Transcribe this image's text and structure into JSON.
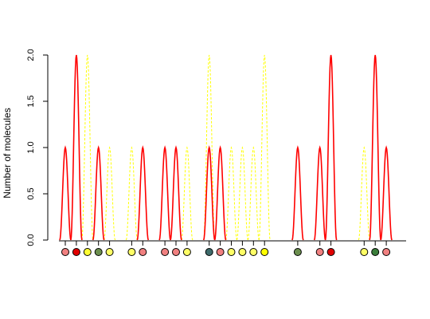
{
  "chart_data": {
    "type": "line",
    "title": "",
    "xlabel": "",
    "ylabel": "Number of molecules",
    "ylim": [
      0,
      2
    ],
    "yticks": [
      "0.0",
      "0.5",
      "1.0",
      "1.5",
      "2.0"
    ],
    "ytick_values": [
      0,
      0.5,
      1,
      1.5,
      2
    ],
    "grid": false,
    "legend": "none",
    "xlim": [
      1,
      31
    ],
    "series": [
      {
        "color": "#ff0000",
        "style": "solid",
        "peaks": [
          {
            "x": 1,
            "y": 1
          },
          {
            "x": 2,
            "y": 2
          },
          {
            "x": 4,
            "y": 1
          },
          {
            "x": 8,
            "y": 1
          },
          {
            "x": 10,
            "y": 1
          },
          {
            "x": 11,
            "y": 1
          },
          {
            "x": 14,
            "y": 1
          },
          {
            "x": 15,
            "y": 1
          },
          {
            "x": 22,
            "y": 1
          },
          {
            "x": 24,
            "y": 1
          },
          {
            "x": 25,
            "y": 2
          },
          {
            "x": 29,
            "y": 2
          },
          {
            "x": 30,
            "y": 1
          }
        ]
      },
      {
        "color": "#ffff00",
        "style": "dashed",
        "peaks": [
          {
            "x": 3,
            "y": 2
          },
          {
            "x": 4,
            "y": 1
          },
          {
            "x": 5,
            "y": 1
          },
          {
            "x": 7,
            "y": 1
          },
          {
            "x": 12,
            "y": 1
          },
          {
            "x": 14,
            "y": 2
          },
          {
            "x": 16,
            "y": 1
          },
          {
            "x": 17,
            "y": 1
          },
          {
            "x": 18,
            "y": 1
          },
          {
            "x": 19,
            "y": 2
          },
          {
            "x": 22,
            "y": 1
          },
          {
            "x": 28,
            "y": 1
          }
        ]
      }
    ],
    "markers": [
      {
        "x": 1,
        "color": "#f08080"
      },
      {
        "x": 2,
        "color": "#e00000"
      },
      {
        "x": 3,
        "color": "#ffff33"
      },
      {
        "x": 4,
        "color": "#6b8e4e"
      },
      {
        "x": 5,
        "color": "#ffff66"
      },
      {
        "x": 7,
        "color": "#ffff66"
      },
      {
        "x": 8,
        "color": "#f08080"
      },
      {
        "x": 10,
        "color": "#f08080"
      },
      {
        "x": 11,
        "color": "#f08080"
      },
      {
        "x": 12,
        "color": "#ffff66"
      },
      {
        "x": 14,
        "color": "#3e6b6b"
      },
      {
        "x": 15,
        "color": "#f08080"
      },
      {
        "x": 16,
        "color": "#ffff66"
      },
      {
        "x": 17,
        "color": "#ffff66"
      },
      {
        "x": 18,
        "color": "#ffff66"
      },
      {
        "x": 19,
        "color": "#ffff00"
      },
      {
        "x": 22,
        "color": "#6b8e4e"
      },
      {
        "x": 24,
        "color": "#f08080"
      },
      {
        "x": 25,
        "color": "#e00000"
      },
      {
        "x": 28,
        "color": "#ffff66"
      },
      {
        "x": 29,
        "color": "#3a7d3a"
      },
      {
        "x": 30,
        "color": "#f08080"
      }
    ]
  }
}
